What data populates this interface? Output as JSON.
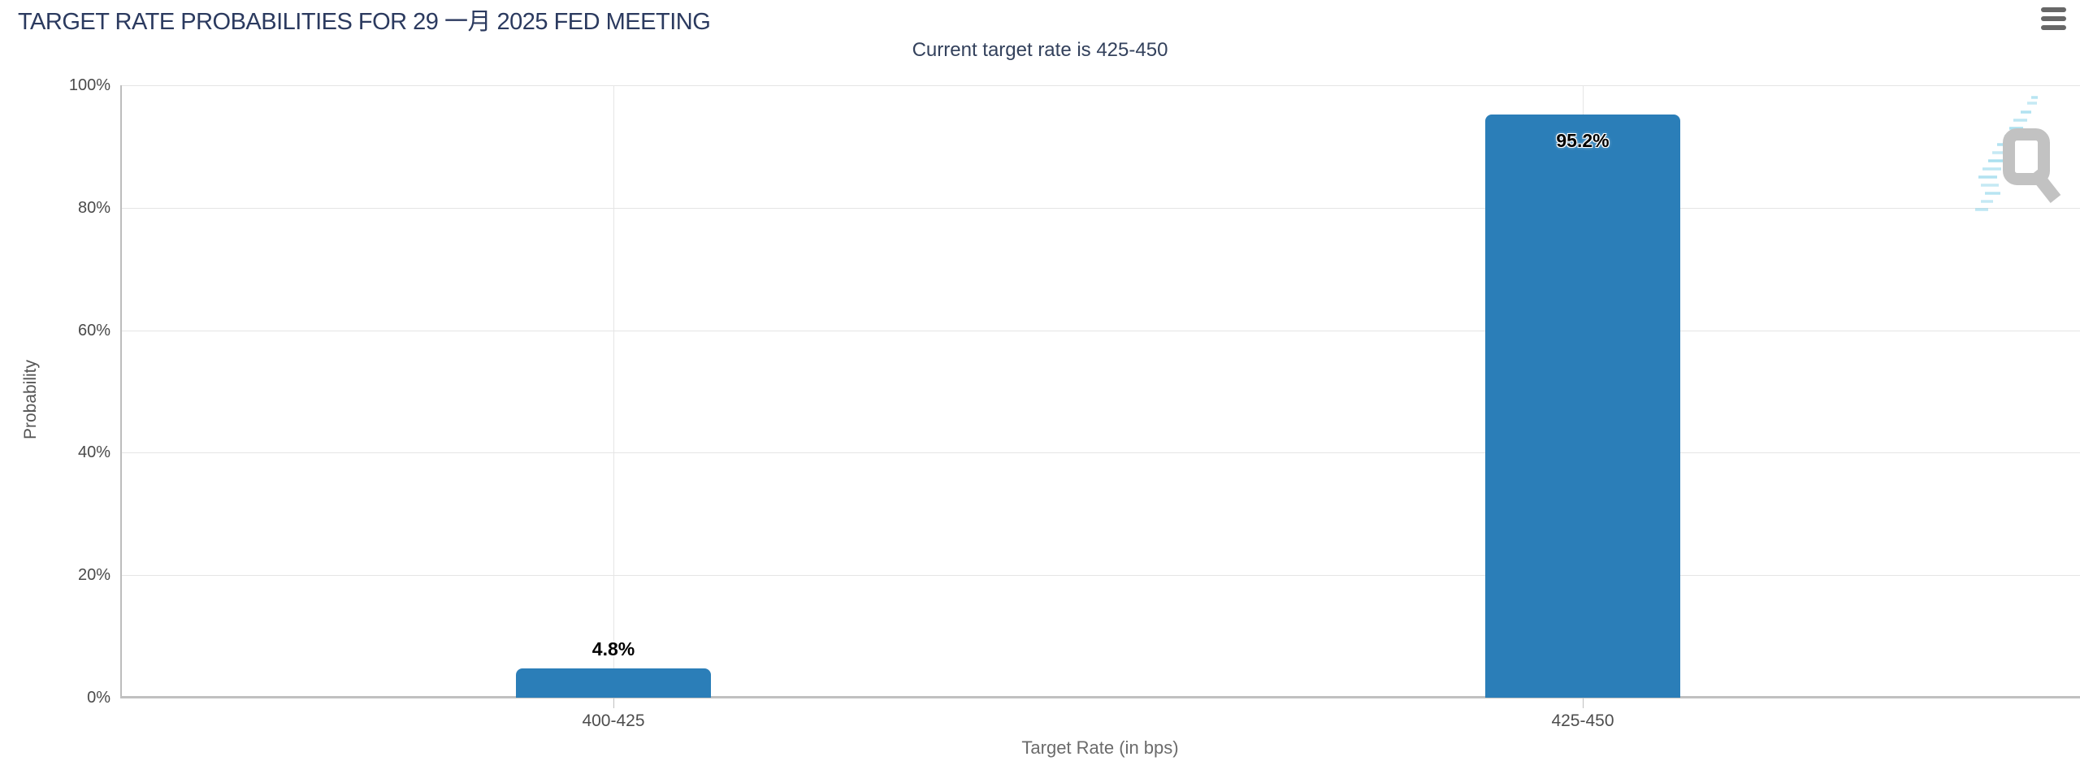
{
  "header": {
    "title": "TARGET RATE PROBABILITIES FOR 29 一月 2025 FED MEETING",
    "menu_tooltip": "Chart context menu"
  },
  "chart": {
    "subtitle": "Current target rate is 425-450",
    "y_axis": {
      "title": "Probability",
      "tick_labels": [
        "100%",
        "80%",
        "60%",
        "40%",
        "20%",
        "0%"
      ]
    },
    "x_axis": {
      "title": "Target Rate (in bps)",
      "categories": [
        "400-425",
        "425-450"
      ]
    },
    "bars": [
      {
        "category": "400-425",
        "value": 4.8,
        "label": "4.8%"
      },
      {
        "category": "425-450",
        "value": 95.2,
        "label": "95.2%"
      }
    ]
  },
  "watermark": {
    "name": "quikstrike-logo"
  },
  "colors": {
    "bar": "#2b7eb8",
    "title_text": "#2b3a5f",
    "subtitle_text": "#33415c",
    "gridline": "#e5e5e5",
    "axis_line": "#c0c0c0"
  },
  "chart_data": {
    "type": "bar",
    "title": "TARGET RATE PROBABILITIES FOR 29 一月 2025 FED MEETING",
    "subtitle": "Current target rate is 425-450",
    "categories": [
      "400-425",
      "425-450"
    ],
    "values": [
      4.8,
      95.2
    ],
    "value_labels": [
      "4.8%",
      "95.2%"
    ],
    "xlabel": "Target Rate (in bps)",
    "ylabel": "Probability",
    "ylim": [
      0,
      100
    ],
    "y_tick_step": 20,
    "grid": true,
    "legend": false,
    "bar_color": "#2b7eb8"
  }
}
